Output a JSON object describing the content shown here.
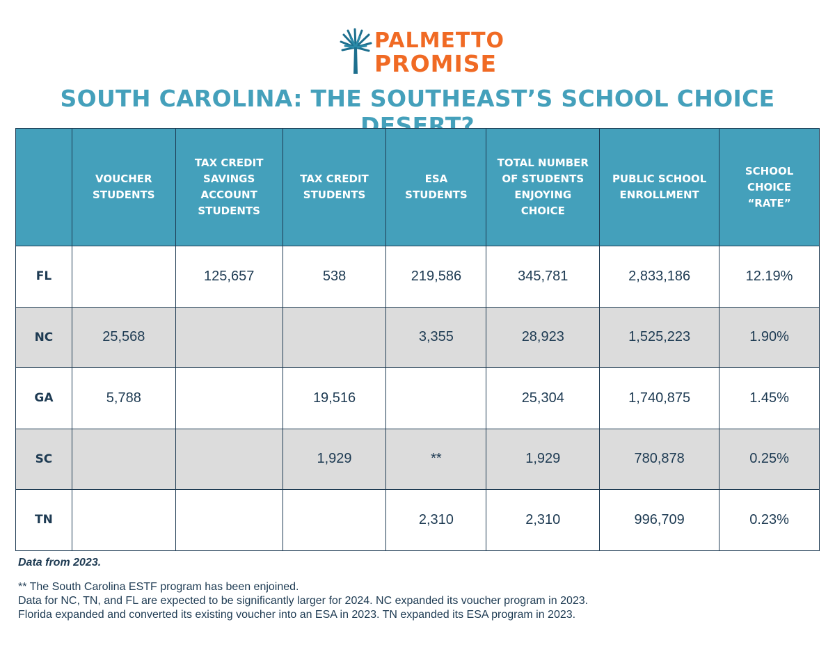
{
  "brand": {
    "name_line1": "PALMETTO",
    "name_line2": "PROMISE",
    "accent_color": "#f06a24",
    "mark_icon": "palmetto-tree-icon"
  },
  "title": "SOUTH CAROLINA: THE SOUTHEAST’S SCHOOL CHOICE DESERT?",
  "colors": {
    "header_bg": "#44a0bb",
    "text": "#1d3a52",
    "shaded_row": "#dcdcdc"
  },
  "table": {
    "headers": [
      "",
      "VOUCHER STUDENTS",
      "TAX CREDIT SAVINGS ACCOUNT STUDENTS",
      "TAX CREDIT STUDENTS",
      "ESA STUDENTS",
      "TOTAL NUMBER OF STUDENTS ENJOYING CHOICE",
      "PUBLIC SCHOOL ENROLLMENT",
      "SCHOOL CHOICE “RATE”"
    ],
    "rows": [
      [
        "FL",
        "",
        "125,657",
        "538",
        "219,586",
        "345,781",
        "2,833,186",
        "12.19%"
      ],
      [
        "NC",
        "25,568",
        "",
        "",
        "3,355",
        "28,923",
        "1,525,223",
        "1.90%"
      ],
      [
        "GA",
        "5,788",
        "",
        "19,516",
        "",
        "25,304",
        "1,740,875",
        "1.45%"
      ],
      [
        "SC",
        "",
        "",
        "1,929",
        "**",
        "1,929",
        "780,878",
        "0.25%"
      ],
      [
        "TN",
        "",
        "",
        "",
        "2,310",
        "2,310",
        "996,709",
        "0.23%"
      ]
    ]
  },
  "source": "Data from 2023.",
  "notes": [
    "** The South Carolina ESTF program has been enjoined.",
    "Data for NC, TN, and FL are expected to be significantly larger for 2024. NC expanded its voucher program in 2023.",
    "Florida expanded and converted its existing voucher into an ESA in 2023. TN expanded its ESA program in 2023."
  ]
}
